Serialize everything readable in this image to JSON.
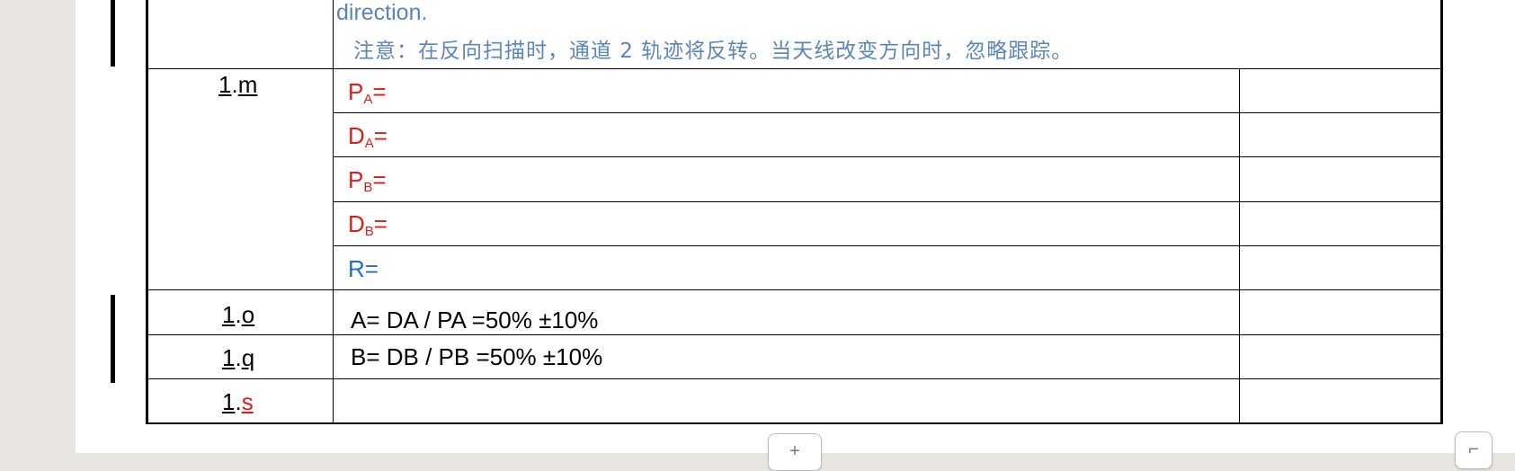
{
  "note_en_tail": "direction.",
  "note_cn": "注意：在反向扫描时，通道 2 轨迹将反转。当天线改变方向时，忽略跟踪。",
  "rows": {
    "m": {
      "num": "1",
      "dot": ".",
      "letter": "m"
    },
    "o": {
      "num": "1",
      "dot": ".",
      "letter": "o"
    },
    "q": {
      "num": "1",
      "dot": ".",
      "letter": "q"
    },
    "s": {
      "num": "1",
      "dot": ".",
      "letter": "s"
    }
  },
  "params": {
    "pa": {
      "main": "P",
      "sub": "A",
      "eq": "="
    },
    "da": {
      "main": "D",
      "sub": "A",
      "eq": "="
    },
    "pb": {
      "main": "P",
      "sub": "B",
      "eq": "="
    },
    "db": {
      "main": "D",
      "sub": "B",
      "eq": "="
    },
    "r": {
      "text": "R="
    }
  },
  "formulas": {
    "a": "A= DA / PA =50% ±10%",
    "b": "B= DB / PB =50% ±10%"
  },
  "colors": {
    "red": "#e11a1a",
    "blue_note": "#5b85b8",
    "blue_param": "#1f6fbf"
  },
  "controls": {
    "add_icon": "plus-icon",
    "corner_icon": "corner-bracket-icon"
  }
}
